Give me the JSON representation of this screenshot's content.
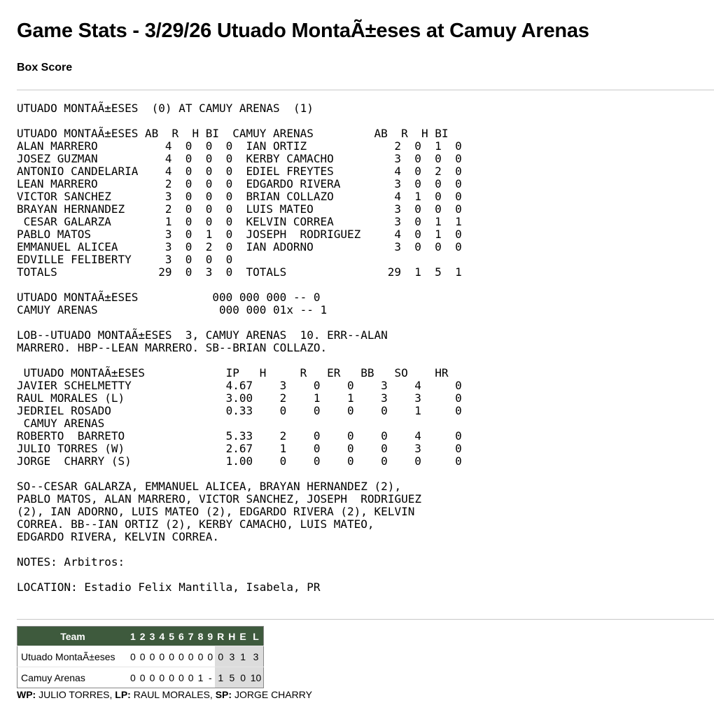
{
  "title": "Game Stats - 3/29/26 Utuado MontaÃ±eses at Camuy Arenas",
  "subtitle": "Box Score",
  "box": {
    "matchup": "UTUADO MONTAÃ±ESES  (0) AT CAMUY ARENAS  (1)",
    "batting_header": "UTUADO MONTAÃ±ESES AB  R  H BI  CAMUY ARENAS         AB  R  H BI",
    "batting_rows": [
      {
        "away": [
          "ALAN MARRERO",
          "4",
          "0",
          "0",
          "0"
        ],
        "home": [
          "IAN ORTIZ",
          "2",
          "0",
          "1",
          "0"
        ]
      },
      {
        "away": [
          "JOSEZ GUZMAN",
          "4",
          "0",
          "0",
          "0"
        ],
        "home": [
          "KERBY CAMACHO",
          "3",
          "0",
          "0",
          "0"
        ]
      },
      {
        "away": [
          "ANTONIO CANDELARIA",
          "4",
          "0",
          "0",
          "0"
        ],
        "home": [
          "EDIEL FREYTES",
          "4",
          "0",
          "2",
          "0"
        ]
      },
      {
        "away": [
          "LEAN MARRERO",
          "2",
          "0",
          "0",
          "0"
        ],
        "home": [
          "EDGARDO RIVERA",
          "3",
          "0",
          "0",
          "0"
        ]
      },
      {
        "away": [
          "VICTOR SANCHEZ",
          "3",
          "0",
          "0",
          "0"
        ],
        "home": [
          "BRIAN COLLAZO",
          "4",
          "1",
          "0",
          "0"
        ]
      },
      {
        "away": [
          "BRAYAN HERNANDEZ",
          "2",
          "0",
          "0",
          "0"
        ],
        "home": [
          "LUIS MATEO",
          "3",
          "0",
          "0",
          "0"
        ]
      },
      {
        "away": [
          " CESAR GALARZA",
          "1",
          "0",
          "0",
          "0"
        ],
        "home": [
          "KELVIN CORREA",
          "3",
          "0",
          "1",
          "1"
        ]
      },
      {
        "away": [
          "PABLO MATOS",
          "3",
          "0",
          "1",
          "0"
        ],
        "home": [
          "JOSEPH  RODRIGUEZ",
          "4",
          "0",
          "1",
          "0"
        ]
      },
      {
        "away": [
          "EMMANUEL ALICEA",
          "3",
          "0",
          "2",
          "0"
        ],
        "home": [
          "IAN ADORNO",
          "3",
          "0",
          "0",
          "0"
        ]
      },
      {
        "away": [
          "EDVILLE FELIBERTY",
          "3",
          "0",
          "0",
          "0"
        ],
        "home": [
          "",
          "",
          "",
          "",
          ""
        ]
      },
      {
        "away": [
          "TOTALS",
          "29",
          "0",
          "3",
          "0"
        ],
        "home": [
          "TOTALS",
          "29",
          "1",
          "5",
          "1"
        ]
      }
    ],
    "linescore_lines": [
      "UTUADO MONTAÃ±ESES           000 000 000 -- 0",
      "CAMUY ARENAS                  000 000 01x -- 1"
    ],
    "lob_lines": [
      "LOB--UTUADO MONTAÃ±ESES  3, CAMUY ARENAS  10. ERR--ALAN",
      "MARRERO. HBP--LEAN MARRERO. SB--BRIAN COLLAZO."
    ],
    "pitching_header": " UTUADO MONTAÃ±ESES            IP   H     R   ER   BB   SO    HR",
    "pitching_away": [
      [
        "JAVIER SCHELMETTY",
        "4.67",
        "3",
        "0",
        "0",
        "3",
        "4",
        "0"
      ],
      [
        "RAUL MORALES (L)",
        "3.00",
        "2",
        "1",
        "1",
        "3",
        "3",
        "0"
      ],
      [
        "JEDRIEL ROSADO",
        "0.33",
        "0",
        "0",
        "0",
        "0",
        "1",
        "0"
      ]
    ],
    "pitching_home_label": " CAMUY ARENAS",
    "pitching_home": [
      [
        "ROBERTO  BARRETO",
        "5.33",
        "2",
        "0",
        "0",
        "0",
        "4",
        "0"
      ],
      [
        "JULIO TORRES (W)",
        "2.67",
        "1",
        "0",
        "0",
        "0",
        "3",
        "0"
      ],
      [
        "JORGE  CHARRY (S)",
        "1.00",
        "0",
        "0",
        "0",
        "0",
        "0",
        "0"
      ]
    ],
    "so_lines": [
      "SO--CESAR GALARZA, EMMANUEL ALICEA, BRAYAN HERNANDEZ (2),",
      "PABLO MATOS, ALAN MARRERO, VICTOR SANCHEZ, JOSEPH  RODRIGUEZ",
      "(2), IAN ADORNO, LUIS MATEO (2), EDGARDO RIVERA (2), KELVIN",
      "CORREA. BB--IAN ORTIZ (2), KERBY CAMACHO, LUIS MATEO,",
      "EDGARDO RIVERA, KELVIN CORREA."
    ],
    "notes": "NOTES: Arbitros:",
    "location": "LOCATION: Estadio Felix Mantilla, Isabela, PR"
  },
  "linescore": {
    "header": [
      "Team",
      "1",
      "2",
      "3",
      "4",
      "5",
      "6",
      "7",
      "8",
      "9",
      "R",
      "H",
      "E",
      "L"
    ],
    "rows": [
      [
        "Utuado MontaÃ±eses",
        "0",
        "0",
        "0",
        "0",
        "0",
        "0",
        "0",
        "0",
        "0",
        "0",
        "3",
        "1",
        "3"
      ],
      [
        "Camuy Arenas",
        "0",
        "0",
        "0",
        "0",
        "0",
        "0",
        "0",
        "1",
        "-",
        "1",
        "5",
        "0",
        "10"
      ]
    ],
    "header_color": "#3e5a3d",
    "totals_bg": "#dcdcdc"
  },
  "footer": {
    "wp_label": "WP:",
    "wp": " JULIO TORRES, ",
    "lp_label": "LP:",
    "lp": " RAUL MORALES, ",
    "sp_label": "SP:",
    "sp": " JORGE CHARRY"
  }
}
